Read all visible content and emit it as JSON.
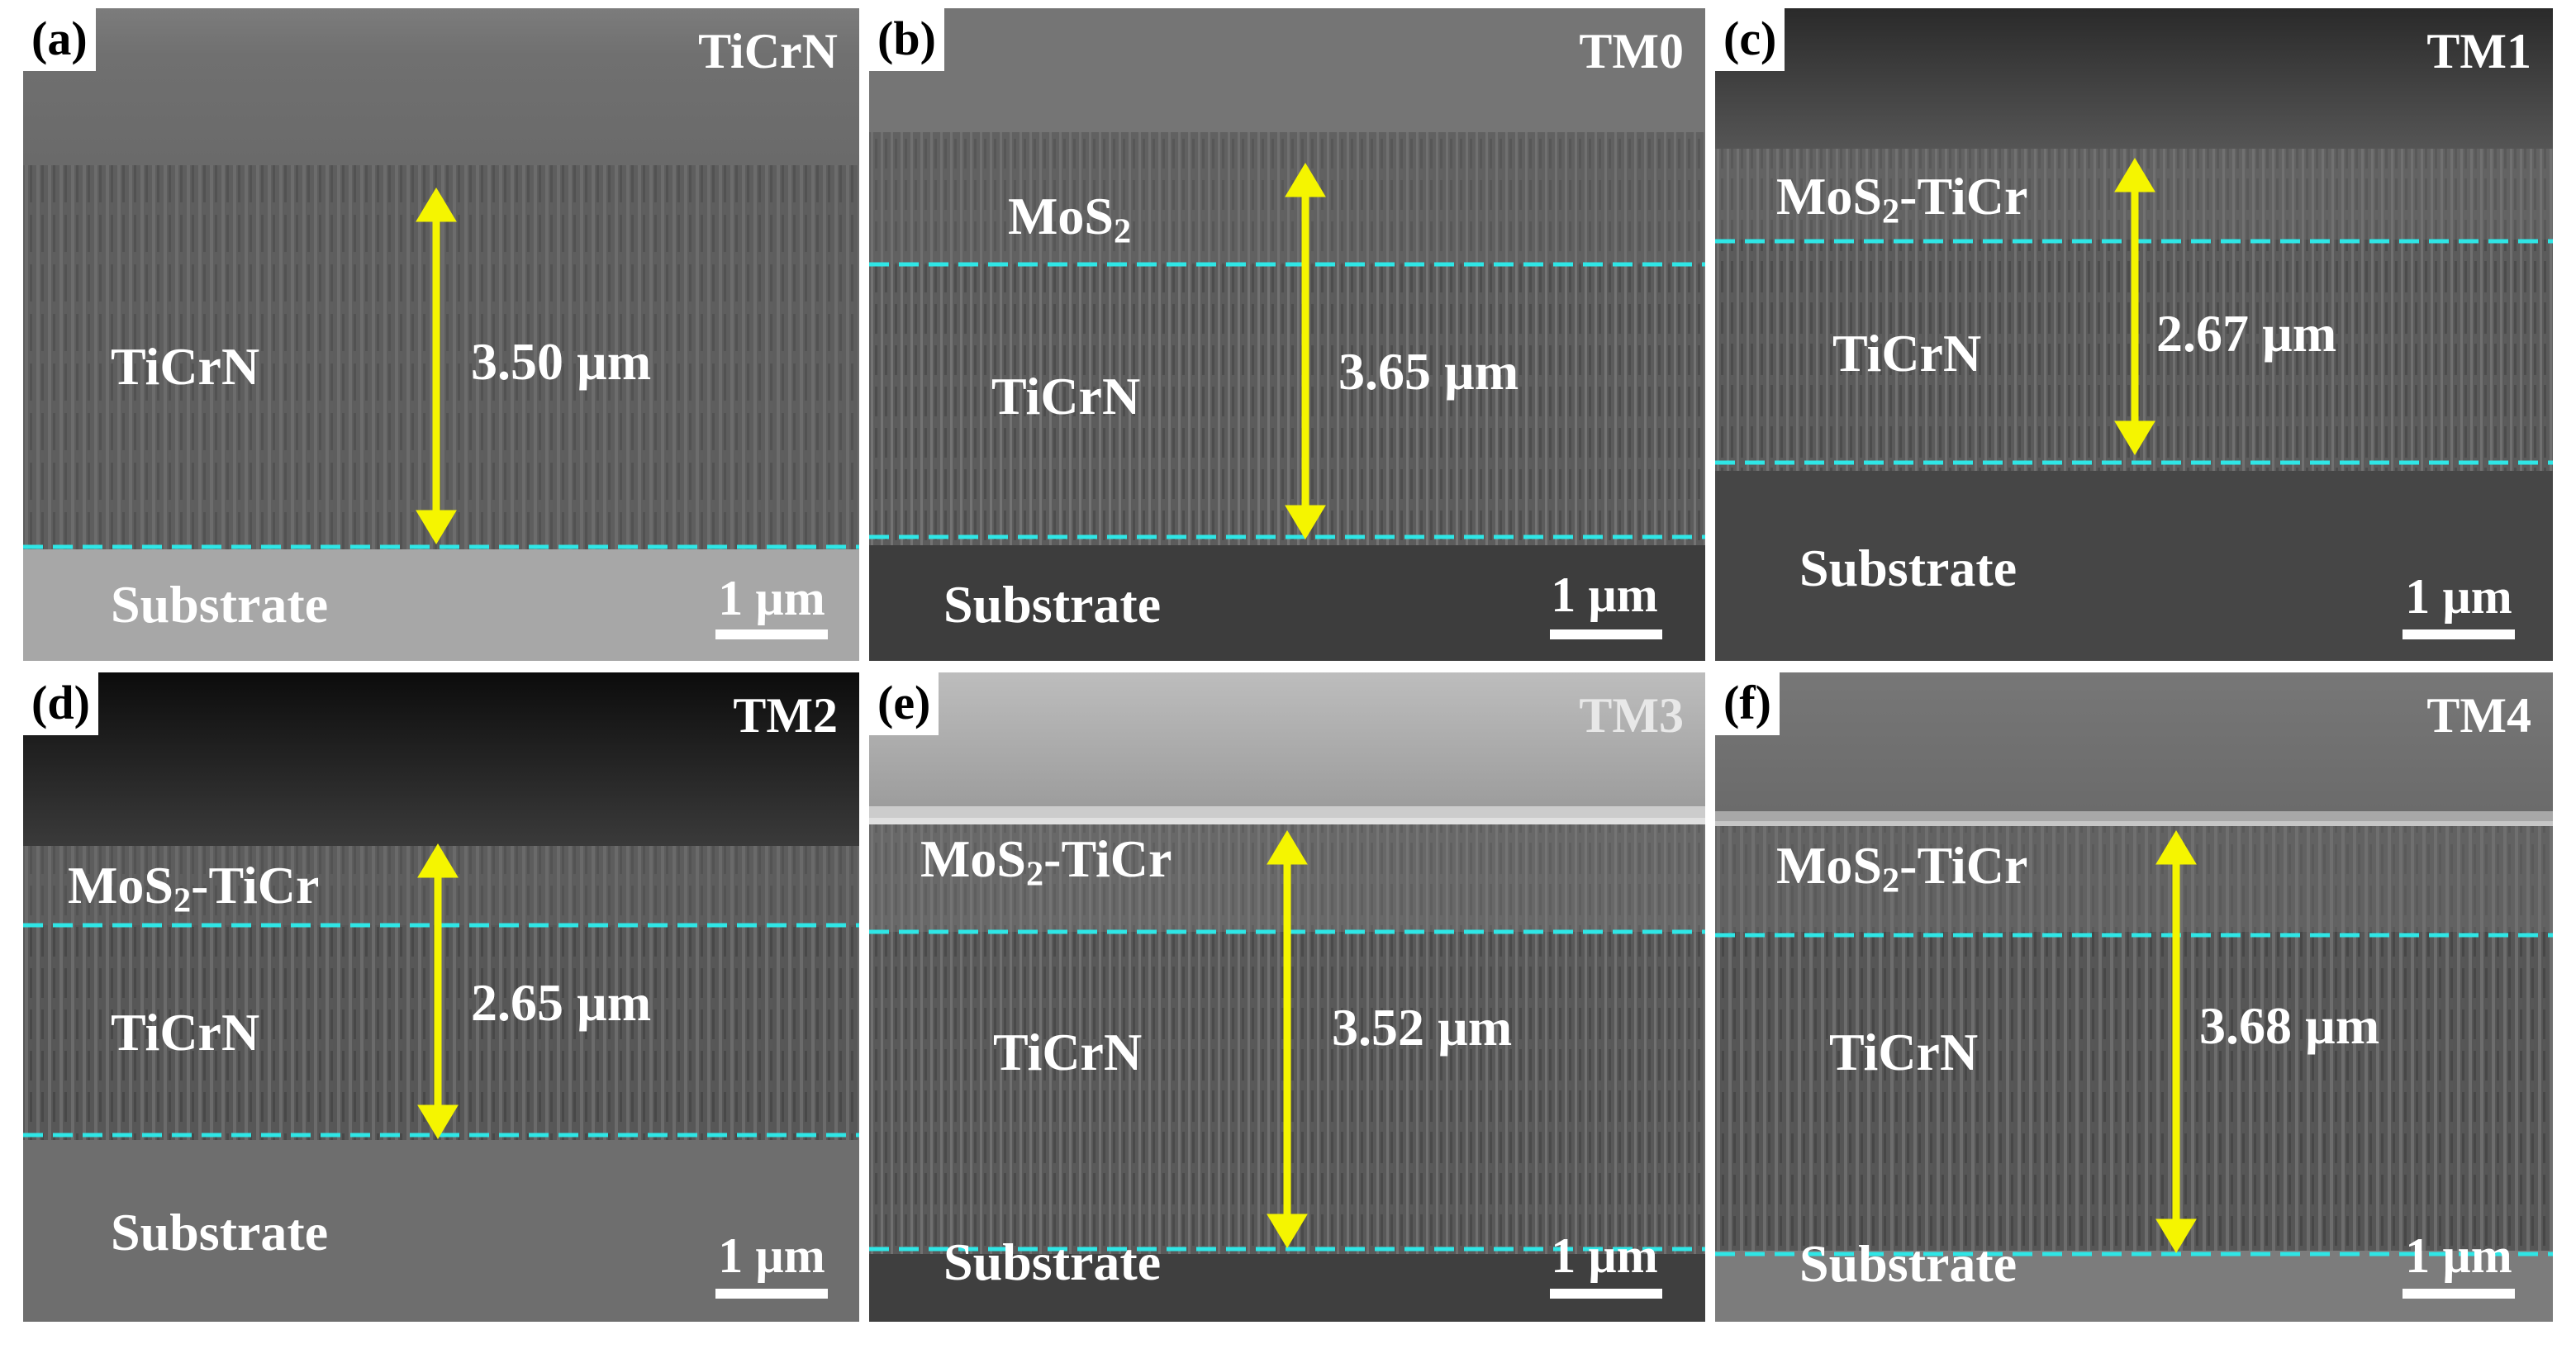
{
  "panels": [
    {
      "id": "a",
      "label": "(a)",
      "sample": "TiCrN",
      "top_layer": "",
      "middle_layer": "TiCrN",
      "bottom_layer": "Substrate",
      "thickness": "3.50 µm",
      "scale_bar": "1 µm"
    },
    {
      "id": "b",
      "label": "(b)",
      "sample": "TM0",
      "top_layer": "MoS2",
      "middle_layer": "TiCrN",
      "bottom_layer": "Substrate",
      "thickness": "3.65 µm",
      "scale_bar": "1 µm"
    },
    {
      "id": "c",
      "label": "(c)",
      "sample": "TM1",
      "top_layer": "MoS2-TiCr",
      "middle_layer": "TiCrN",
      "bottom_layer": "Substrate",
      "thickness": "2.67 µm",
      "scale_bar": "1 µm"
    },
    {
      "id": "d",
      "label": "(d)",
      "sample": "TM2",
      "top_layer": "MoS2-TiCr",
      "middle_layer": "TiCrN",
      "bottom_layer": "Substrate",
      "thickness": "2.65 µm",
      "scale_bar": "1 µm"
    },
    {
      "id": "e",
      "label": "(e)",
      "sample": "TM3",
      "top_layer": "MoS2-TiCr",
      "middle_layer": "TiCrN",
      "bottom_layer": "Substrate",
      "thickness": "3.52 µm",
      "scale_bar": "1 µm"
    },
    {
      "id": "f",
      "label": "(f)",
      "sample": "TM4",
      "top_layer": "MoS2-TiCr",
      "middle_layer": "TiCrN",
      "bottom_layer": "Substrate",
      "thickness": "3.68 µm",
      "scale_bar": "1 µm"
    }
  ],
  "colors": {
    "arrow": "#f5f500",
    "interface_line": "#2fe6e6",
    "text": "#ffffff",
    "label_box": "#ffffff"
  }
}
